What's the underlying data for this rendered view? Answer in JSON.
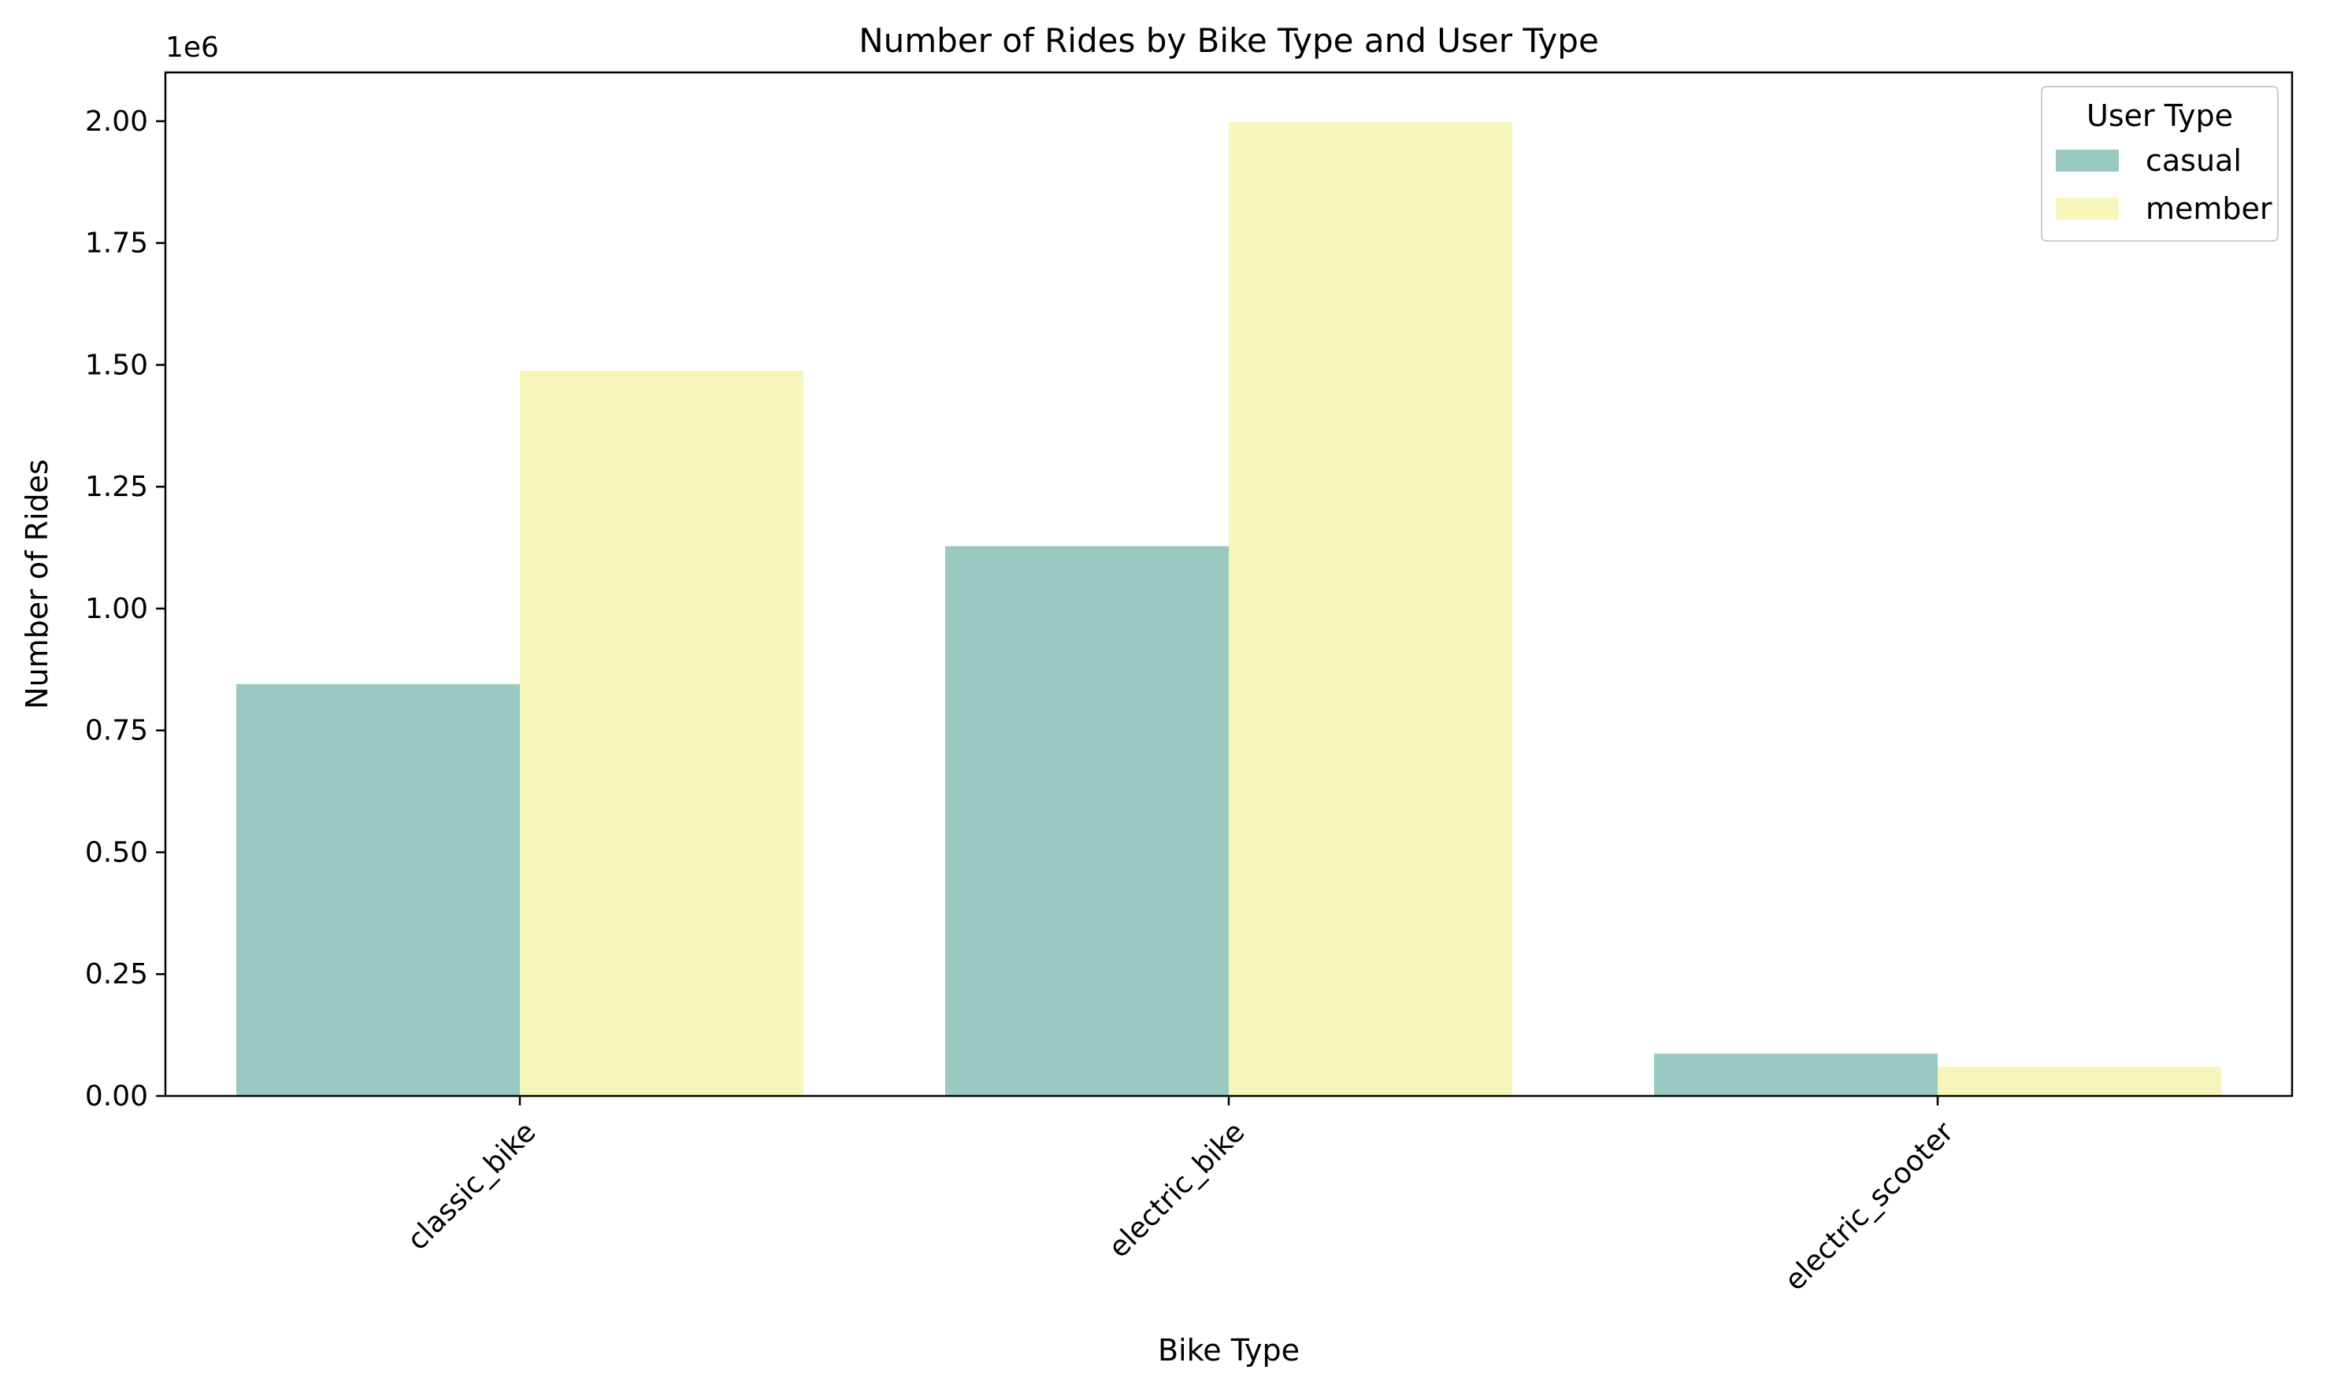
{
  "chart_data": {
    "type": "bar",
    "title": "Number of Rides by Bike Type and User Type",
    "xlabel": "Bike Type",
    "ylabel": "Number of Rides",
    "offset_text": "1e6",
    "categories": [
      "classic_bike",
      "electric_bike",
      "electric_scooter"
    ],
    "series": [
      {
        "name": "casual",
        "color": "#99c9c1",
        "values": [
          845000,
          1128000,
          87000
        ]
      },
      {
        "name": "member",
        "color": "#f6f6bc",
        "values": [
          1488000,
          1998000,
          60000
        ]
      }
    ],
    "y_ticks": [
      0,
      250000,
      500000,
      750000,
      1000000,
      1250000,
      1500000,
      1750000,
      2000000
    ],
    "y_tick_labels": [
      "0.00",
      "0.25",
      "0.50",
      "0.75",
      "1.00",
      "1.25",
      "1.50",
      "1.75",
      "2.00"
    ],
    "ylim": [
      0,
      2100000
    ],
    "grid": false,
    "legend": {
      "title": "User Type",
      "position": "top-right"
    }
  }
}
